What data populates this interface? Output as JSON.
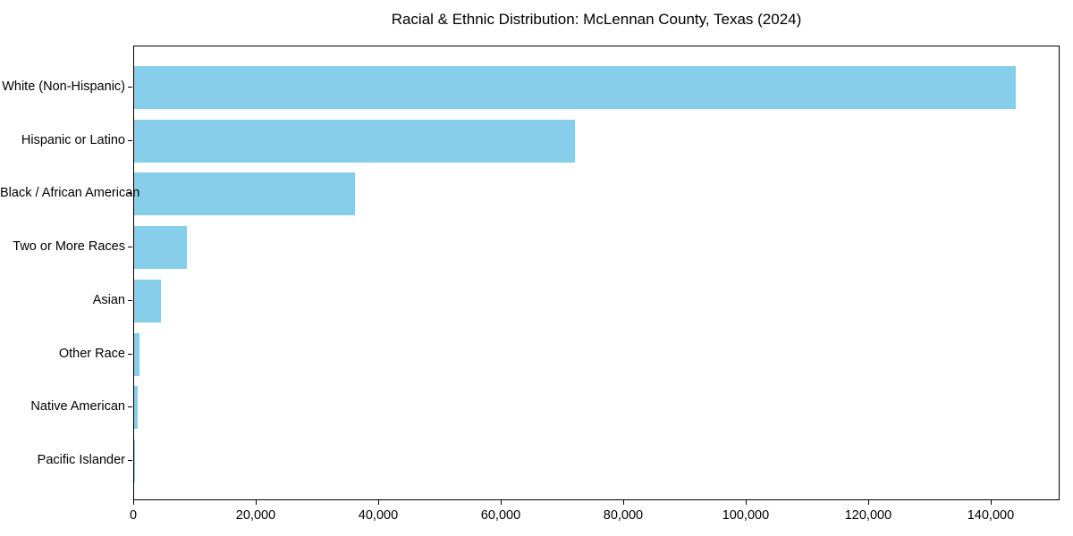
{
  "chart_data": {
    "type": "bar",
    "orientation": "horizontal",
    "title": "Racial & Ethnic Distribution: McLennan County, Texas (2024)",
    "categories": [
      "White (Non-Hispanic)",
      "Hispanic or Latino",
      "Black / African American",
      "Two or More Races",
      "Asian",
      "Other Race",
      "Native American",
      "Pacific Islander"
    ],
    "values": [
      144000,
      72000,
      36000,
      8600,
      4400,
      870,
      520,
      130
    ],
    "xlabel": "",
    "ylabel": "",
    "xlim": [
      0,
      151250
    ],
    "x_ticks": [
      0,
      20000,
      40000,
      60000,
      80000,
      100000,
      120000,
      140000
    ],
    "x_tick_labels": [
      "0",
      "20,000",
      "40,000",
      "60,000",
      "80,000",
      "100,000",
      "120,000",
      "140,000"
    ],
    "bar_color": "#87CEEB",
    "grid": false,
    "legend": null,
    "spine_color": "#000000",
    "background_color": "#ffffff"
  }
}
